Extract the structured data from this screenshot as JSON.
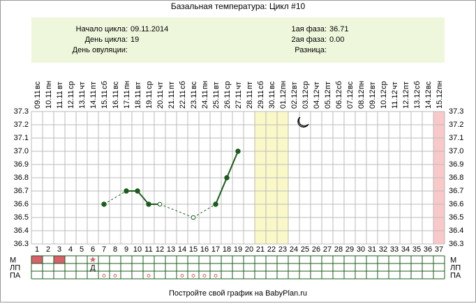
{
  "chart_data": {
    "type": "line",
    "title": "Базальная температура: Цикл #10",
    "info_left": [
      {
        "label": "Начало цикла:",
        "value": "09.11.2014"
      },
      {
        "label": "День цикла:",
        "value": "19"
      },
      {
        "label": "День овуляции:"
      }
    ],
    "info_right": [
      {
        "label": "1ая фаза:",
        "value": "36.71"
      },
      {
        "label": "2ая фаза:",
        "value": "0.00"
      },
      {
        "label": "Разница:"
      }
    ],
    "categories": [
      "1",
      "2",
      "3",
      "4",
      "5",
      "6",
      "7",
      "8",
      "9",
      "10",
      "11",
      "12",
      "13",
      "14",
      "15",
      "16",
      "17",
      "18",
      "19",
      "20",
      "21",
      "22",
      "23",
      "24",
      "25",
      "26",
      "27",
      "28",
      "29",
      "30",
      "31",
      "32",
      "33",
      "34",
      "35",
      "36",
      "37"
    ],
    "weekdays": [
      "вс",
      "пн",
      "вт",
      "ср",
      "чт",
      "пт",
      "сб",
      "вс",
      "пн",
      "вт",
      "ср",
      "чт",
      "пт",
      "сб",
      "вс",
      "пн",
      "вт",
      "ср",
      "чт",
      "пт",
      "сб",
      "вс",
      "пн",
      "вт",
      "ср",
      "чт",
      "пт",
      "сб",
      "вс",
      "пн",
      "вт",
      "ср",
      "чт",
      "пт",
      "сб",
      "вс",
      "пн"
    ],
    "dates": [
      "09.11",
      "10.11",
      "11.11",
      "12.11",
      "13.11",
      "14.11",
      "15.11",
      "16.11",
      "17.11",
      "18.11",
      "19.11",
      "20.11",
      "21.11",
      "22.11",
      "23.11",
      "24.11",
      "25.11",
      "26.11",
      "27.11",
      "28.11",
      "29.11",
      "30.11",
      "01.12",
      "02.12",
      "03.12",
      "04.12",
      "05.12",
      "06.12",
      "07.12",
      "08.12",
      "09.12",
      "10.12",
      "11.12",
      "12.12",
      "13.12",
      "14.12",
      "15.12"
    ],
    "values": [
      null,
      null,
      null,
      null,
      null,
      null,
      36.6,
      null,
      36.7,
      36.7,
      36.6,
      36.6,
      null,
      null,
      36.5,
      null,
      36.6,
      36.8,
      37.0,
      null,
      null,
      null,
      null,
      null,
      null,
      null,
      null,
      null,
      null,
      null,
      null,
      null,
      null,
      null,
      null,
      null,
      null
    ],
    "point_style": [
      null,
      null,
      null,
      null,
      null,
      null,
      "filled",
      null,
      "filled",
      "filled",
      "filled",
      "open",
      null,
      null,
      "open",
      null,
      "filled",
      "filled",
      "filled",
      null,
      null,
      null,
      null,
      null,
      null,
      null,
      null,
      null,
      null,
      null,
      null,
      null,
      null,
      null,
      null,
      null,
      null
    ],
    "color": "#1a5c1a",
    "ylim": [
      36.3,
      37.3
    ],
    "yticks": [
      36.3,
      36.4,
      36.5,
      36.6,
      36.7,
      36.8,
      36.9,
      {
        "value": 37,
        "label": "37.0"
      },
      37.1,
      37.2,
      37.3
    ],
    "grid": true,
    "highlight_days": [
      21,
      22,
      23
    ],
    "highlight_color": "#fbf8c8",
    "period_days": [
      37
    ],
    "period_color": "#f9c8c8",
    "rows": [
      {
        "label": "М",
        "filled_days": [
          1,
          3
        ],
        "star_days": [
          6
        ]
      },
      {
        "label": "ЛП",
        "text": "Д",
        "text_days": [
          6
        ]
      },
      {
        "label": "ПА",
        "circle_days": [
          7,
          8,
          11,
          14,
          15,
          16,
          17
        ]
      }
    ],
    "footer": "Постройте свой график на BabyPlan.ru"
  }
}
